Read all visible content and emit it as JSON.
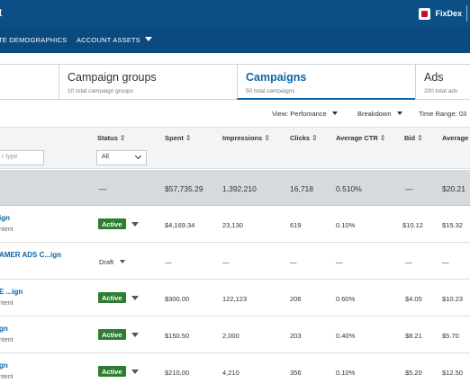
{
  "header": {
    "title_fragment": "t",
    "brand_name": "FixDex"
  },
  "nav": {
    "item1": "TE DEMOGRAPHICS",
    "item2": "ACCOUNT ASSETS"
  },
  "tabs": [
    {
      "label": "Campaign groups",
      "sub": "10 total campaign groups"
    },
    {
      "label": "Campaigns",
      "sub": "50 total campaigns"
    },
    {
      "label": "Ads",
      "sub": "200 total ads"
    }
  ],
  "viewbar": {
    "view": "View: Perfomance",
    "breakdown": "Breakdown",
    "time_range": "Time Range: 03"
  },
  "columns": {
    "status": "Status",
    "spent": "Spent",
    "impressions": "Impressions",
    "clicks": "Clicks",
    "ctr": "Average CTR",
    "bid": "Bid",
    "avg": "Average"
  },
  "filters": {
    "name_placeholder": "r type",
    "status_value": "All"
  },
  "totals": {
    "status": "—",
    "spent": "$57,735.29",
    "impressions": "1,392,210",
    "clicks": "16,718",
    "ctr": "0.510%",
    "bid": "—",
    "avg": "$20.21"
  },
  "rows": [
    {
      "name": "ign",
      "sub": "ntent",
      "status": "Active",
      "spent": "$4,169.34",
      "impressions": "23,130",
      "clicks": "619",
      "ctr": "0.10%",
      "bid": "$10.12",
      "avg": "$15.32"
    },
    {
      "name": "AMER ADS C...ign",
      "sub": "",
      "status": "Draft",
      "spent": "—",
      "impressions": "—",
      "clicks": "—",
      "ctr": "—",
      "bid": "—",
      "avg": "—"
    },
    {
      "name": "E ...ign",
      "sub": "ntent",
      "status": "Active",
      "spent": "$300.00",
      "impressions": "122,123",
      "clicks": "206",
      "ctr": "0.60%",
      "bid": "$4.05",
      "avg": "$10.23"
    },
    {
      "name": "gn",
      "sub": "ntent",
      "status": "Active",
      "spent": "$150.50",
      "impressions": "2,000",
      "clicks": "203",
      "ctr": "0.40%",
      "bid": "$8.21",
      "avg": "$5.70"
    },
    {
      "name": "gn",
      "sub": "ntent",
      "status": "Active",
      "spent": "$210.00",
      "impressions": "4,210",
      "clicks": "356",
      "ctr": "0.10%",
      "bid": "$5.20",
      "avg": "$12.50"
    }
  ]
}
